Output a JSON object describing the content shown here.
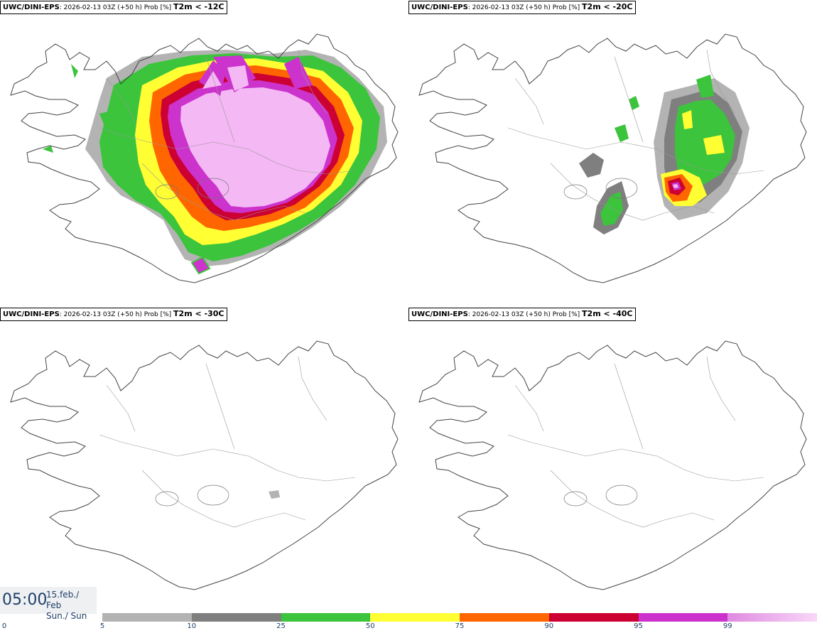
{
  "panels": [
    {
      "model": "UWC/DINI-EPS",
      "info": ": 2026-02-13 03Z (+50 h) Prob [%]",
      "param": "T2m < -12C"
    },
    {
      "model": "UWC/DINI-EPS",
      "info": ": 2026-02-13 03Z (+50 h) Prob [%]",
      "param": "T2m < -20C"
    },
    {
      "model": "UWC/DINI-EPS",
      "info": ": 2026-02-13 03Z (+50 h) Prob [%]",
      "param": "T2m < -30C"
    },
    {
      "model": "UWC/DINI-EPS",
      "info": ": 2026-02-13 03Z (+50 h) Prob [%]",
      "param": "T2m < -40C"
    }
  ],
  "valid_time": {
    "time": "05:00",
    "date_line1": "15.feb./ Feb",
    "date_line2": "Sun./ Sun"
  },
  "legend": {
    "ticks": [
      "0",
      "5",
      "10",
      "25",
      "50",
      "75",
      "90",
      "95",
      "99"
    ],
    "colors": [
      "#b3b3b3",
      "#7f7f7f",
      "#3cc43c",
      "#ffff33",
      "#ff6600",
      "#cc0033",
      "#cc33cc",
      "#f4b8f4"
    ]
  }
}
